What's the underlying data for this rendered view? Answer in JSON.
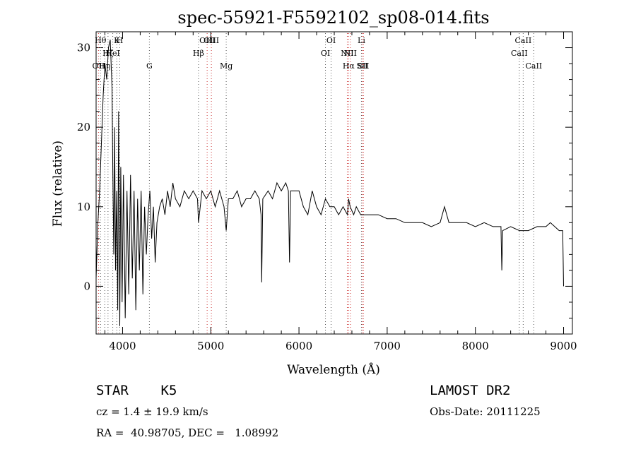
{
  "chart_data": {
    "type": "line",
    "title": "spec-55921-F5592102_sp08-014.fits",
    "xlabel": "Wavelength (Å)",
    "ylabel": "Flux (relative)",
    "xlim": [
      3700,
      9100
    ],
    "ylim": [
      -6,
      32
    ],
    "x_ticks": [
      4000,
      5000,
      6000,
      7000,
      8000,
      9000
    ],
    "y_ticks": [
      0,
      10,
      20,
      30
    ],
    "grid": false,
    "line_color": "#000000",
    "series": [
      {
        "x": [
          3700,
          3720,
          3740,
          3760,
          3780,
          3800,
          3820,
          3840,
          3860,
          3880,
          3890,
          3900,
          3910,
          3920,
          3933,
          3945,
          3955,
          3968,
          3980,
          3995,
          4010,
          4030,
          4050,
          4070,
          4090,
          4110,
          4130,
          4150,
          4170,
          4190,
          4210,
          4230,
          4250,
          4270,
          4290,
          4310,
          4330,
          4350,
          4370,
          4390,
          4420,
          4450,
          4480,
          4510,
          4540,
          4570,
          4600,
          4650,
          4700,
          4750,
          4800,
          4850,
          4861,
          4900,
          4950,
          5000,
          5050,
          5100,
          5150,
          5175,
          5200,
          5250,
          5300,
          5350,
          5400,
          5450,
          5500,
          5550,
          5570,
          5577,
          5590,
          5650,
          5700,
          5750,
          5800,
          5850,
          5880,
          5893,
          5905,
          5950,
          6000,
          6050,
          6100,
          6150,
          6200,
          6250,
          6300,
          6350,
          6400,
          6450,
          6500,
          6550,
          6563,
          6580,
          6620,
          6650,
          6700,
          6750,
          6800,
          6900,
          7000,
          7100,
          7200,
          7300,
          7400,
          7500,
          7600,
          7650,
          7700,
          7800,
          7900,
          8000,
          8100,
          8200,
          8290,
          8300,
          8310,
          8400,
          8500,
          8600,
          8700,
          8800,
          8850,
          8900,
          8950,
          8990,
          9000
        ],
        "y": [
          1,
          8,
          12,
          18,
          24,
          28,
          26,
          30,
          31,
          25,
          14,
          4,
          20,
          2,
          12,
          -3,
          22,
          -5,
          15,
          -2,
          14,
          -4,
          12,
          -1,
          14,
          1,
          12,
          -3,
          11,
          2,
          12,
          -1,
          10,
          4,
          9,
          12,
          6,
          10,
          3,
          8,
          10,
          11,
          9,
          12,
          10,
          13,
          11,
          10,
          12,
          11,
          12,
          11,
          8,
          12,
          11,
          12,
          10,
          12,
          10,
          7,
          11,
          11,
          12,
          10,
          11,
          11,
          12,
          11,
          9,
          0.5,
          11,
          12,
          11,
          13,
          12,
          13,
          12,
          3,
          12,
          12,
          12,
          10,
          9,
          12,
          10,
          9,
          11,
          10,
          10,
          9,
          10,
          9,
          11,
          10,
          9,
          10,
          9,
          9,
          9,
          9,
          8.5,
          8.5,
          8,
          8,
          8,
          7.5,
          8,
          10,
          8,
          8,
          8,
          7.5,
          8,
          7.5,
          7.5,
          2,
          7,
          7.5,
          7,
          7,
          7.5,
          7.5,
          8,
          7.5,
          7,
          7,
          0
        ]
      }
    ],
    "lines": [
      {
        "label": "OII",
        "x": 3727,
        "row": 2
      },
      {
        "label": "Hθ",
        "x": 3750,
        "row": 0
      },
      {
        "label": "Hη",
        "x": 3798,
        "row": 2
      },
      {
        "label": "Hζ",
        "x": 3835,
        "row": 1
      },
      {
        "label": "HeI",
        "x": 3889,
        "row": 1
      },
      {
        "label": "K",
        "x": 3934,
        "row": 0
      },
      {
        "label": "H",
        "x": 3968,
        "row": 0
      },
      {
        "label": "G",
        "x": 4304,
        "row": 2
      },
      {
        "label": "Hβ",
        "x": 4861,
        "row": 1
      },
      {
        "label": "OIII",
        "x": 4959,
        "row": 0
      },
      {
        "label": "OIII",
        "x": 5007,
        "row": 0
      },
      {
        "label": "Mg",
        "x": 5175,
        "row": 2
      },
      {
        "label": "OI",
        "x": 6300,
        "row": 1
      },
      {
        "label": "OI",
        "x": 6364,
        "row": 0
      },
      {
        "label": "NII",
        "x": 6548,
        "row": 1
      },
      {
        "label": "Hα",
        "x": 6563,
        "row": 2
      },
      {
        "label": "NII",
        "x": 6583,
        "row": 1
      },
      {
        "label": "Li",
        "x": 6708,
        "row": 0
      },
      {
        "label": "SII",
        "x": 6716,
        "row": 2
      },
      {
        "label": "SII",
        "x": 6731,
        "row": 2
      },
      {
        "label": "CaII",
        "x": 8498,
        "row": 1
      },
      {
        "label": "CaII",
        "x": 8542,
        "row": 0
      },
      {
        "label": "CaII",
        "x": 8662,
        "row": 2
      }
    ],
    "emission_line_color": "#cc3333",
    "absorption_line_color": "#555555"
  },
  "info": {
    "class_text": "STAR    K5",
    "survey": "LAMOST DR2",
    "cz": "cz = 1.4 ± 19.9 km/s",
    "obs_date": "Obs-Date: 20111225",
    "radec": "RA =  40.98705, DEC =   1.08992"
  }
}
